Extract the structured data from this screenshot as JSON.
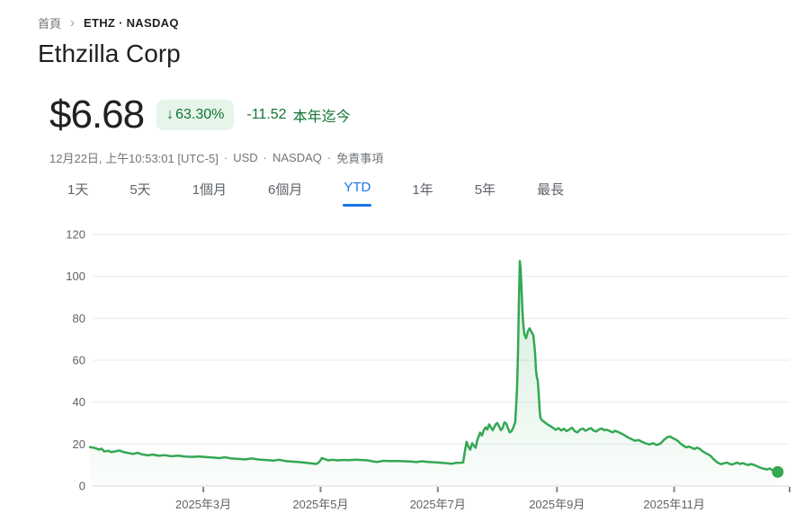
{
  "breadcrumb": {
    "home": "首頁",
    "separator": "›",
    "current": "ETHZ · NASDAQ"
  },
  "header": {
    "company_name": "Ethzilla Corp"
  },
  "quote": {
    "price": "$6.68",
    "change_arrow": "↓",
    "change_percent": "63.30%",
    "change_amount": "-11.52",
    "change_period": "本年迄今",
    "meta_datetime": "12月22日, 上午10:53:01 [UTC-5]",
    "meta_separator": "·",
    "meta_currency": "USD",
    "meta_exchange": "NASDAQ",
    "meta_disclaimer": "免責事項"
  },
  "tabs": {
    "items": [
      {
        "label": "1天",
        "active": false
      },
      {
        "label": "5天",
        "active": false
      },
      {
        "label": "1個月",
        "active": false
      },
      {
        "label": "6個月",
        "active": false
      },
      {
        "label": "YTD",
        "active": true
      },
      {
        "label": "1年",
        "active": false
      },
      {
        "label": "5年",
        "active": false
      },
      {
        "label": "最長",
        "active": false
      }
    ]
  },
  "colors": {
    "positive_green_text": "#137333",
    "badge_background": "#e6f4ea",
    "chart_line_green": "#34a853",
    "active_tab_blue": "#1a73e8",
    "text_primary": "#202124",
    "text_secondary": "#70757a",
    "axis_label_gray": "#5f6368",
    "gridline": "#e8eaed",
    "baseline": "#dadce0"
  },
  "chart_data": {
    "type": "area",
    "series_name": "ETHZ",
    "line_color": "#34a853",
    "grid": true,
    "legend": false,
    "x_unit": "day_of_year_2025",
    "x_range_days": [
      0,
      365
    ],
    "ylim": [
      0,
      128
    ],
    "y_ticks": [
      0,
      20,
      40,
      60,
      80,
      100,
      120
    ],
    "x_ticks": [
      {
        "day": 59,
        "label": "2025年3月"
      },
      {
        "day": 120,
        "label": "2025年5月"
      },
      {
        "day": 181,
        "label": "2025年7月"
      },
      {
        "day": 243,
        "label": "2025年9月"
      },
      {
        "day": 304,
        "label": "2025年11月"
      }
    ],
    "last_price": 6.68,
    "peak_price": 107.3,
    "series": [
      {
        "name": "ETHZ",
        "points": [
          [
            0,
            18.5
          ],
          [
            2.3,
            18.2
          ],
          [
            4.7,
            17.4
          ],
          [
            6.1,
            17.8
          ],
          [
            7.5,
            16.4
          ],
          [
            9.4,
            16.8
          ],
          [
            11.2,
            16.1
          ],
          [
            13.1,
            16.5
          ],
          [
            15.4,
            16.9
          ],
          [
            17.8,
            16.1
          ],
          [
            20.1,
            15.7
          ],
          [
            22.5,
            15.3
          ],
          [
            24.8,
            15.8
          ],
          [
            27.1,
            15.1
          ],
          [
            30,
            14.6
          ],
          [
            32.8,
            15
          ],
          [
            35.6,
            14.4
          ],
          [
            38.8,
            14.7
          ],
          [
            42.1,
            14.2
          ],
          [
            45.9,
            14.5
          ],
          [
            49.6,
            14
          ],
          [
            53.3,
            13.9
          ],
          [
            57.1,
            14.1
          ],
          [
            59.9,
            13.8
          ],
          [
            63.6,
            13.6
          ],
          [
            67.4,
            13.3
          ],
          [
            70.2,
            13.7
          ],
          [
            73.5,
            13.1
          ],
          [
            77.2,
            12.9
          ],
          [
            81,
            12.7
          ],
          [
            84.2,
            13.1
          ],
          [
            88,
            12.6
          ],
          [
            91.7,
            12.4
          ],
          [
            95.5,
            12.1
          ],
          [
            98.3,
            12.5
          ],
          [
            101.6,
            11.9
          ],
          [
            105.3,
            11.6
          ],
          [
            109,
            11.4
          ],
          [
            112.8,
            11
          ],
          [
            115.6,
            10.7
          ],
          [
            117.9,
            10.5
          ],
          [
            119.3,
            11.4
          ],
          [
            120.7,
            13.3
          ],
          [
            122.1,
            12.9
          ],
          [
            124,
            12.2
          ],
          [
            126.4,
            12.5
          ],
          [
            128.7,
            12.2
          ],
          [
            131.5,
            12.4
          ],
          [
            134.8,
            12.3
          ],
          [
            138.1,
            12.5
          ],
          [
            141.3,
            12.4
          ],
          [
            144.6,
            12.2
          ],
          [
            147.4,
            11.7
          ],
          [
            149.8,
            11.5
          ],
          [
            152.6,
            12
          ],
          [
            155.8,
            11.9
          ],
          [
            159.6,
            11.9
          ],
          [
            163.3,
            11.8
          ],
          [
            167,
            11.7
          ],
          [
            169.9,
            11.4
          ],
          [
            172.7,
            11.8
          ],
          [
            175.9,
            11.5
          ],
          [
            179.2,
            11.3
          ],
          [
            182.5,
            11.1
          ],
          [
            185.3,
            10.9
          ],
          [
            188.1,
            10.6
          ],
          [
            190.4,
            11
          ],
          [
            192.8,
            11.1
          ],
          [
            194.2,
            11.2
          ],
          [
            195.1,
            16.5
          ],
          [
            196,
            21.1
          ],
          [
            197,
            18.6
          ],
          [
            197.9,
            17.3
          ],
          [
            198.9,
            20.4
          ],
          [
            199.8,
            19.2
          ],
          [
            200.7,
            18.2
          ],
          [
            201.6,
            22
          ],
          [
            203,
            25.4
          ],
          [
            204,
            24.1
          ],
          [
            204.9,
            26.6
          ],
          [
            205.9,
            28
          ],
          [
            206.8,
            26.9
          ],
          [
            207.7,
            29.4
          ],
          [
            208.7,
            27.9
          ],
          [
            209.6,
            26.6
          ],
          [
            211,
            29.2
          ],
          [
            211.9,
            30.1
          ],
          [
            212.9,
            28.4
          ],
          [
            213.8,
            26.6
          ],
          [
            214.7,
            27.6
          ],
          [
            215.7,
            30.4
          ],
          [
            216.6,
            29.8
          ],
          [
            217.6,
            27.4
          ],
          [
            218.5,
            25.6
          ],
          [
            219.4,
            26.2
          ],
          [
            220.4,
            28.1
          ],
          [
            221.3,
            30.5
          ],
          [
            222.2,
            45
          ],
          [
            222.7,
            62
          ],
          [
            223.2,
            88
          ],
          [
            223.7,
            107.3
          ],
          [
            224.1,
            104
          ],
          [
            224.6,
            93
          ],
          [
            225.1,
            83
          ],
          [
            225.5,
            77
          ],
          [
            226,
            72.5
          ],
          [
            226.9,
            70.5
          ],
          [
            227.9,
            73.8
          ],
          [
            228.8,
            75.2
          ],
          [
            229.7,
            73.5
          ],
          [
            230.7,
            72
          ],
          [
            231.6,
            64
          ],
          [
            232.1,
            55
          ],
          [
            232.6,
            51.5
          ],
          [
            233,
            50.5
          ],
          [
            233.5,
            44
          ],
          [
            234,
            36
          ],
          [
            234.4,
            32.5
          ],
          [
            235.4,
            31.2
          ],
          [
            236.8,
            30.3
          ],
          [
            238.2,
            29.3
          ],
          [
            239.6,
            28.6
          ],
          [
            241,
            27.7
          ],
          [
            242.4,
            26.8
          ],
          [
            243.8,
            27.6
          ],
          [
            245.2,
            26.5
          ],
          [
            246.6,
            27.3
          ],
          [
            248,
            26.2
          ],
          [
            249.4,
            26.9
          ],
          [
            250.8,
            27.8
          ],
          [
            252.3,
            26.1
          ],
          [
            253.7,
            25.6
          ],
          [
            255.1,
            26.9
          ],
          [
            256.5,
            27.4
          ],
          [
            257.9,
            26.3
          ],
          [
            259.3,
            27.1
          ],
          [
            260.7,
            27.6
          ],
          [
            262.1,
            26.4
          ],
          [
            263.5,
            26
          ],
          [
            264.9,
            27
          ],
          [
            266.3,
            27.4
          ],
          [
            267.7,
            26.6
          ],
          [
            269.1,
            26.8
          ],
          [
            270.5,
            26.2
          ],
          [
            271.9,
            25.6
          ],
          [
            273.3,
            26.3
          ],
          [
            274.7,
            25.8
          ],
          [
            276.1,
            25.2
          ],
          [
            278,
            24.3
          ],
          [
            279.9,
            23.2
          ],
          [
            281.7,
            22.4
          ],
          [
            283.6,
            21.6
          ],
          [
            285.5,
            21.9
          ],
          [
            287.4,
            21
          ],
          [
            289.2,
            20.3
          ],
          [
            291.1,
            19.8
          ],
          [
            293,
            20.4
          ],
          [
            294.8,
            19.6
          ],
          [
            296.7,
            20.1
          ],
          [
            298.6,
            21.9
          ],
          [
            300.5,
            23.3
          ],
          [
            301.9,
            23.6
          ],
          [
            303.3,
            22.8
          ],
          [
            304.7,
            22.2
          ],
          [
            306.1,
            21.4
          ],
          [
            307.5,
            20.1
          ],
          [
            308.9,
            19.2
          ],
          [
            310.3,
            18.4
          ],
          [
            311.7,
            18.8
          ],
          [
            313.1,
            18.2
          ],
          [
            314.5,
            17.6
          ],
          [
            315.9,
            18.3
          ],
          [
            317.3,
            17.7
          ],
          [
            318.7,
            16.6
          ],
          [
            320.1,
            15.8
          ],
          [
            321.5,
            15.2
          ],
          [
            322.9,
            14.4
          ],
          [
            324.3,
            13
          ],
          [
            325.7,
            11.8
          ],
          [
            327.1,
            10.9
          ],
          [
            328.5,
            10.4
          ],
          [
            329.9,
            10.8
          ],
          [
            331.3,
            11.2
          ],
          [
            332.7,
            10.6
          ],
          [
            334.1,
            10.2
          ],
          [
            335.5,
            10.7
          ],
          [
            336.9,
            11.1
          ],
          [
            338.3,
            10.5
          ],
          [
            339.7,
            10.9
          ],
          [
            341.1,
            10.4
          ],
          [
            342.5,
            10
          ],
          [
            343.9,
            10.5
          ],
          [
            345.3,
            10.1
          ],
          [
            346.7,
            9.6
          ],
          [
            348.1,
            9
          ],
          [
            349.5,
            8.5
          ],
          [
            350.9,
            8.2
          ],
          [
            352.3,
            7.9
          ],
          [
            353.7,
            8.3
          ],
          [
            355.1,
            7.6
          ],
          [
            356.5,
            7
          ],
          [
            357.9,
            6.68
          ]
        ]
      }
    ]
  }
}
